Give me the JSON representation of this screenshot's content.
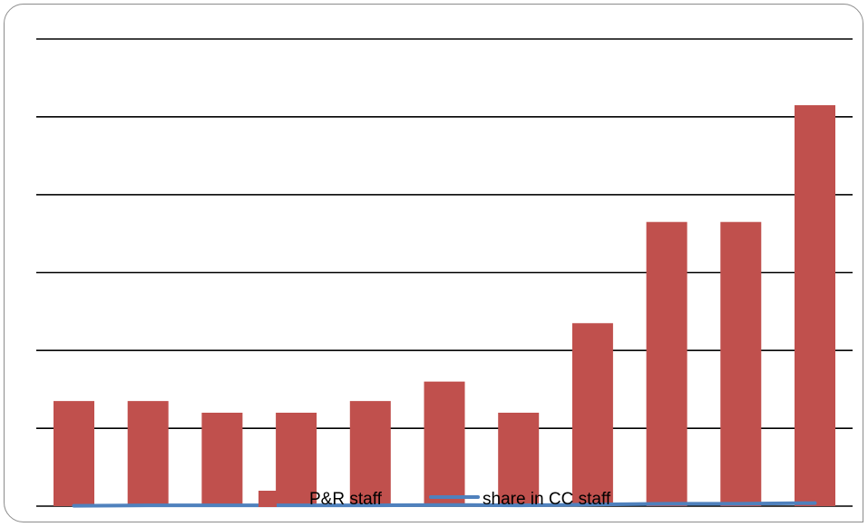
{
  "chart_data": {
    "type": "bar",
    "categories": [
      "",
      "",
      "",
      "",
      "",
      "",
      "",
      "",
      "",
      "",
      ""
    ],
    "series": [
      {
        "name": "P&R staff",
        "kind": "bar",
        "color": "#c0504d",
        "values": [
          2.7,
          2.7,
          2.4,
          2.4,
          2.7,
          3.2,
          2.4,
          4.7,
          7.3,
          7.3,
          10.3
        ]
      },
      {
        "name": "share in CC staff",
        "kind": "line",
        "color": "#4f81bd",
        "values": [
          0.01,
          0.02,
          0.02,
          0.02,
          0.02,
          0.03,
          0.02,
          0.04,
          0.06,
          0.06,
          0.08
        ]
      }
    ],
    "ylim": [
      0,
      12
    ],
    "y_gridlines": [
      0,
      2,
      4,
      6,
      8,
      10,
      12
    ],
    "grid": true,
    "legend": {
      "placement": "bottom"
    }
  }
}
